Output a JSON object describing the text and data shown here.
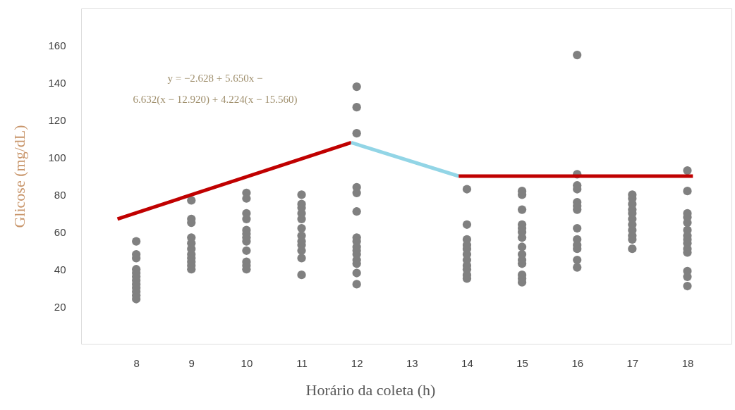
{
  "chart_data": {
    "type": "scatter",
    "xlabel": "Horário da coleta (h)",
    "ylabel": "Glicose (mg/dL)",
    "xlim": [
      7,
      18.8
    ],
    "ylim": [
      0,
      180
    ],
    "xticks": [
      8,
      9,
      10,
      11,
      12,
      13,
      14,
      15,
      16,
      17,
      18
    ],
    "yticks": [
      20,
      40,
      60,
      80,
      100,
      120,
      140,
      160
    ],
    "grid": false,
    "annotations": [
      "y = −2.628 + 5.650x −\n6.632(x − 12.920) + 4.224(x − 15.560)"
    ],
    "series": [
      {
        "marker": "circle",
        "color": "#808080",
        "x": [
          8,
          8,
          8,
          8,
          8,
          8,
          8,
          8,
          8,
          8,
          8,
          8,
          9,
          9,
          9,
          9,
          9,
          9,
          9,
          9,
          9,
          9,
          9,
          10,
          10,
          10,
          10,
          10,
          10,
          10,
          10,
          10,
          10,
          10,
          10,
          11,
          11,
          11,
          11,
          11,
          11,
          11,
          11,
          11,
          11,
          11,
          11,
          12,
          12,
          12,
          12,
          12,
          12,
          12,
          12,
          12,
          12,
          12,
          12,
          12,
          12,
          12,
          14,
          14,
          14,
          14,
          14,
          14,
          14,
          14,
          14,
          14,
          14,
          15,
          15,
          15,
          15,
          15,
          15,
          15,
          15,
          15,
          15,
          15,
          15,
          15,
          15,
          16,
          16,
          16,
          16,
          16,
          16,
          16,
          16,
          16,
          16,
          16,
          16,
          16,
          17,
          17,
          17,
          17,
          17,
          17,
          17,
          17,
          17,
          17,
          17,
          18,
          18,
          18,
          18,
          18,
          18,
          18,
          18,
          18,
          18,
          18,
          18,
          18,
          18
        ],
        "values": [
          55,
          48,
          46,
          40,
          38,
          36,
          34,
          32,
          30,
          28,
          26,
          24,
          77,
          67,
          65,
          57,
          54,
          51,
          48,
          46,
          44,
          42,
          40,
          81,
          78,
          70,
          67,
          61,
          59,
          57,
          55,
          50,
          44,
          42,
          40,
          80,
          75,
          73,
          70,
          67,
          62,
          58,
          55,
          53,
          50,
          46,
          37,
          138,
          127,
          113,
          84,
          81,
          71,
          57,
          55,
          52,
          50,
          48,
          45,
          43,
          38,
          32,
          83,
          64,
          56,
          53,
          51,
          48,
          45,
          42,
          40,
          37,
          35,
          82,
          80,
          72,
          64,
          62,
          60,
          57,
          52,
          48,
          45,
          43,
          37,
          35,
          33,
          155,
          91,
          85,
          83,
          76,
          74,
          72,
          62,
          56,
          53,
          51,
          45,
          41,
          80,
          78,
          75,
          72,
          70,
          67,
          64,
          61,
          58,
          56,
          51,
          93,
          82,
          70,
          68,
          65,
          61,
          58,
          56,
          54,
          51,
          49,
          39,
          36,
          31
        ]
      },
      {
        "type": "line",
        "color": "#c00000",
        "marker": "none",
        "line_style": "solid",
        "x": [
          7.66,
          11.9
        ],
        "values": [
          67,
          108
        ]
      },
      {
        "type": "line",
        "color": "#92d5e6",
        "marker": "none",
        "line_style": "solid",
        "x": [
          11.9,
          13.85
        ],
        "values": [
          108,
          90
        ]
      },
      {
        "type": "line",
        "color": "#c00000",
        "marker": "none",
        "line_style": "solid",
        "x": [
          13.85,
          18.1
        ],
        "values": [
          90,
          90
        ]
      }
    ]
  }
}
